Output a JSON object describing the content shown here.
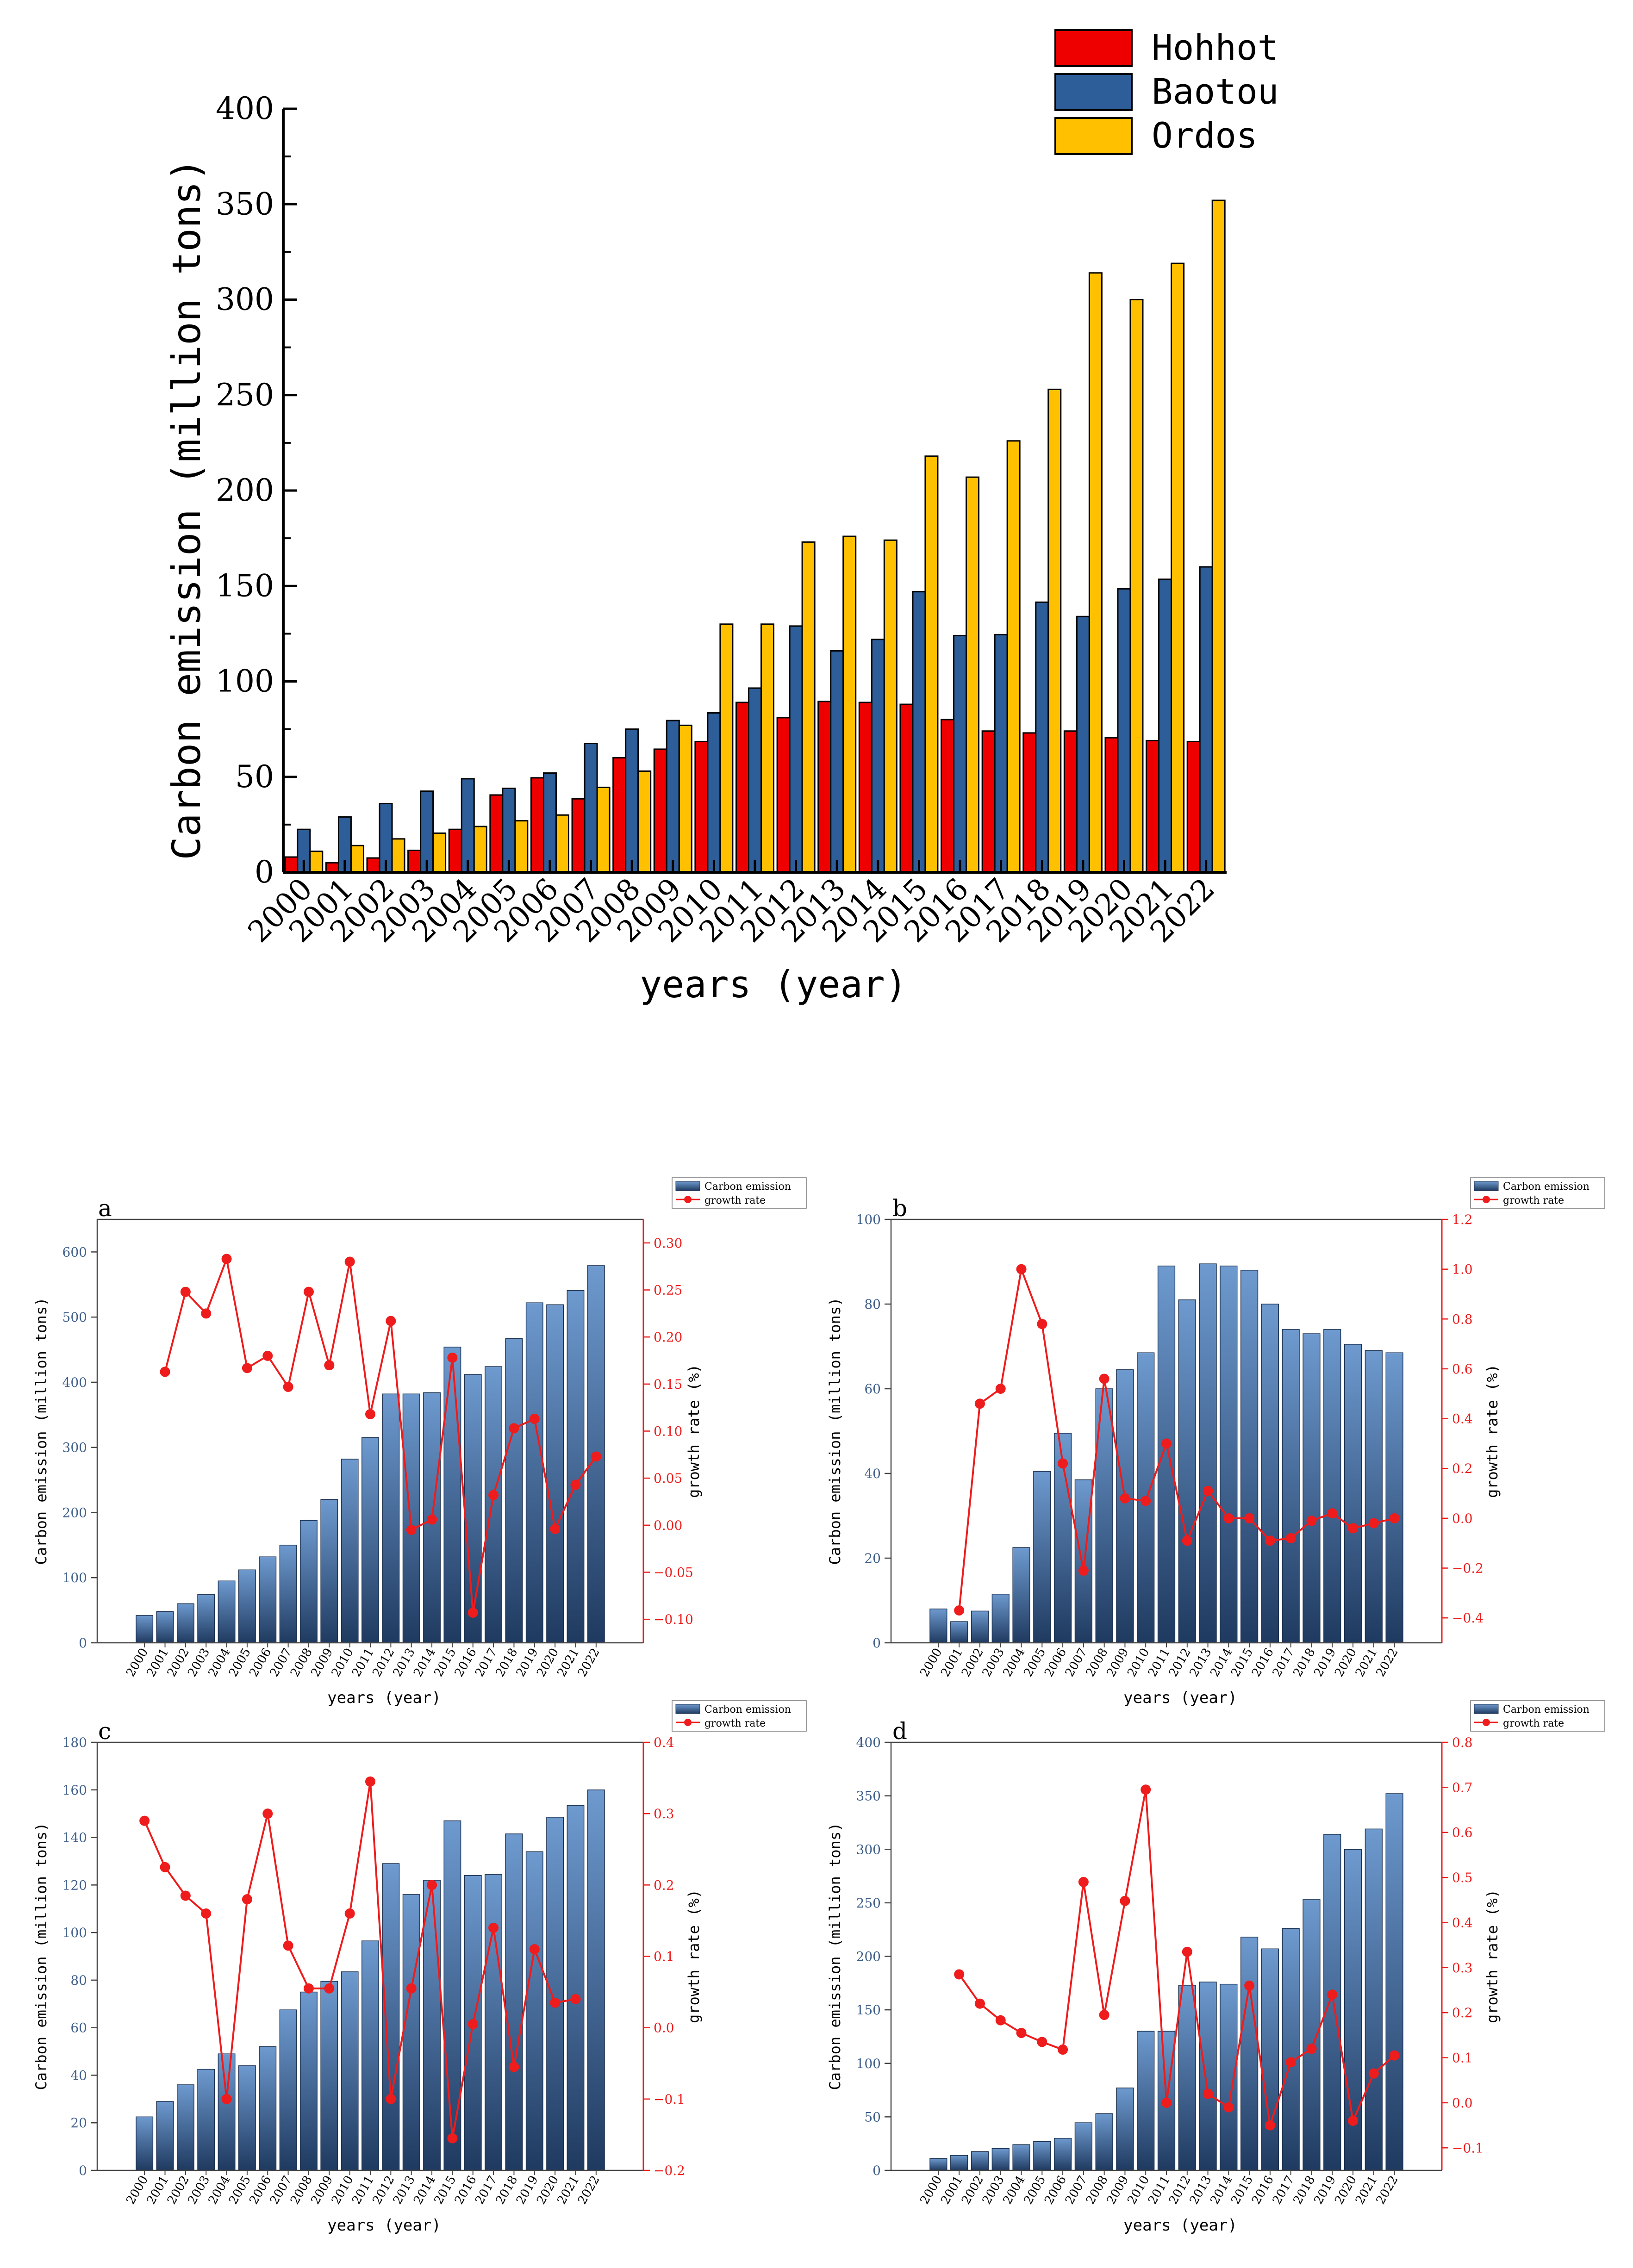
{
  "colors": {
    "hohhot": "#EE0000",
    "baotou": "#2E5E9A",
    "ordos": "#FFC000",
    "bar_dark": "#1F3A60",
    "bar_light": "#6E9ACF",
    "growth": "#EE1C1C",
    "axis": "#000000"
  },
  "chart_data": [
    {
      "id": "main",
      "type": "bar",
      "title": "",
      "xlabel": "years (year)",
      "ylabel": "Carbon emission (million tons)",
      "ylim": [
        0,
        400
      ],
      "yticks": [
        0,
        50,
        100,
        150,
        200,
        250,
        300,
        350,
        400
      ],
      "legend_position": "top-right",
      "categories": [
        "2000",
        "2001",
        "2002",
        "2003",
        "2004",
        "2005",
        "2006",
        "2007",
        "2008",
        "2009",
        "2010",
        "2011",
        "2012",
        "2013",
        "2014",
        "2015",
        "2016",
        "2017",
        "2018",
        "2019",
        "2020",
        "2021",
        "2022"
      ],
      "series": [
        {
          "name": "Hohhot",
          "color_key": "hohhot",
          "values": [
            8,
            5,
            7.5,
            11.5,
            22.5,
            40.5,
            49.5,
            38.5,
            60,
            64.5,
            68.5,
            89,
            81,
            89.5,
            89,
            88,
            80,
            74,
            73,
            74,
            70.5,
            69,
            68.5
          ]
        },
        {
          "name": "Baotou",
          "color_key": "baotou",
          "values": [
            22.5,
            29,
            36,
            42.5,
            49,
            44,
            52,
            67.5,
            75,
            79.5,
            83.5,
            96.5,
            129,
            116,
            122,
            147,
            124,
            124.5,
            141.5,
            134,
            148.5,
            153.5,
            160
          ]
        },
        {
          "name": "Ordos",
          "color_key": "ordos",
          "values": [
            11,
            14,
            17.5,
            20.5,
            24,
            27,
            30,
            44.5,
            53,
            77,
            130,
            130,
            173,
            176,
            174,
            218,
            207,
            226,
            253,
            314,
            300,
            319,
            352
          ]
        }
      ]
    },
    {
      "id": "a",
      "type": "bar+line",
      "panel_label": "a",
      "xlabel": "years (year)",
      "ylabel": "Carbon emission (million tons)",
      "y2label": "growth rate (%)",
      "ylim": [
        0,
        650
      ],
      "yticks": [
        0,
        100,
        200,
        300,
        400,
        500,
        600
      ],
      "y2lim": [
        -0.125,
        0.325
      ],
      "y2ticks": [
        -0.1,
        -0.05,
        0.0,
        0.05,
        0.1,
        0.15,
        0.2,
        0.25,
        0.3
      ],
      "y2tick_labels": [
        "−0.10",
        "−0.05",
        "0.00",
        "0.05",
        "0.10",
        "0.15",
        "0.20",
        "0.25",
        "0.30"
      ],
      "legend": [
        "Carbon emission",
        "growth rate"
      ],
      "categories": [
        "2000",
        "2001",
        "2002",
        "2003",
        "2004",
        "2005",
        "2006",
        "2007",
        "2008",
        "2009",
        "2010",
        "2011",
        "2012",
        "2013",
        "2014",
        "2015",
        "2016",
        "2017",
        "2018",
        "2019",
        "2020",
        "2021",
        "2022"
      ],
      "bars": [
        42,
        48,
        60,
        74,
        95,
        112,
        132,
        150,
        188,
        220,
        282,
        315,
        382,
        382,
        384,
        454,
        412,
        424,
        467,
        522,
        519,
        541,
        579
      ],
      "growth_x": [
        "2001",
        "2002",
        "2003",
        "2004",
        "2005",
        "2006",
        "2007",
        "2008",
        "2009",
        "2010",
        "2011",
        "2012",
        "2013",
        "2014",
        "2015",
        "2016",
        "2017",
        "2018",
        "2019",
        "2020",
        "2021",
        "2022"
      ],
      "growth": [
        0.163,
        0.248,
        0.225,
        0.283,
        0.167,
        0.18,
        0.147,
        0.248,
        0.17,
        0.28,
        0.118,
        0.217,
        -0.005,
        0.006,
        0.178,
        -0.093,
        0.032,
        0.103,
        0.113,
        -0.004,
        0.043,
        0.073
      ]
    },
    {
      "id": "b",
      "type": "bar+line",
      "panel_label": "b",
      "xlabel": "years (year)",
      "ylabel": "Carbon emission (million tons)",
      "y2label": "growth rate (%)",
      "ylim": [
        0,
        100
      ],
      "yticks": [
        0,
        20,
        40,
        60,
        80,
        100
      ],
      "y2lim": [
        -0.5,
        1.2
      ],
      "y2ticks": [
        -0.4,
        -0.2,
        0.0,
        0.2,
        0.4,
        0.6,
        0.8,
        1.0,
        1.2
      ],
      "y2tick_labels": [
        "−0.4",
        "−0.2",
        "0.0",
        "0.2",
        "0.4",
        "0.6",
        "0.8",
        "1.0",
        "1.2"
      ],
      "legend": [
        "Carbon emission",
        "growth rate"
      ],
      "categories": [
        "2000",
        "2001",
        "2002",
        "2003",
        "2004",
        "2005",
        "2006",
        "2007",
        "2008",
        "2009",
        "2010",
        "2011",
        "2012",
        "2013",
        "2014",
        "2015",
        "2016",
        "2017",
        "2018",
        "2019",
        "2020",
        "2021",
        "2022"
      ],
      "bars": [
        8,
        5,
        7.5,
        11.5,
        22.5,
        40.5,
        49.5,
        38.5,
        60,
        64.5,
        68.5,
        89,
        81,
        89.5,
        89,
        88,
        80,
        74,
        73,
        74,
        70.5,
        69,
        68.5
      ],
      "growth_x": [
        "2001",
        "2002",
        "2003",
        "2004",
        "2005",
        "2006",
        "2007",
        "2008",
        "2009",
        "2010",
        "2011",
        "2012",
        "2013",
        "2014",
        "2015",
        "2016",
        "2017",
        "2018",
        "2019",
        "2020",
        "2021",
        "2022"
      ],
      "growth": [
        -0.37,
        0.46,
        0.52,
        1.0,
        0.78,
        0.22,
        -0.21,
        0.56,
        0.08,
        0.07,
        0.3,
        -0.09,
        0.11,
        0.0,
        0.0,
        -0.09,
        -0.08,
        -0.01,
        0.02,
        -0.04,
        -0.02,
        0.0
      ]
    },
    {
      "id": "c",
      "type": "bar+line",
      "panel_label": "c",
      "xlabel": "years (year)",
      "ylabel": "Carbon emission (million tons)",
      "y2label": "growth rate (%)",
      "ylim": [
        0,
        180
      ],
      "yticks": [
        0,
        20,
        40,
        60,
        80,
        100,
        120,
        140,
        160,
        180
      ],
      "y2lim": [
        -0.2,
        0.4
      ],
      "y2ticks": [
        -0.2,
        -0.1,
        0.0,
        0.1,
        0.2,
        0.3,
        0.4
      ],
      "y2tick_labels": [
        "−0.2",
        "−0.1",
        "0.0",
        "0.1",
        "0.2",
        "0.3",
        "0.4"
      ],
      "legend": [
        "Carbon emission",
        "growth rate"
      ],
      "categories": [
        "2000",
        "2001",
        "2002",
        "2003",
        "2004",
        "2005",
        "2006",
        "2007",
        "2008",
        "2009",
        "2010",
        "2011",
        "2012",
        "2013",
        "2014",
        "2015",
        "2016",
        "2017",
        "2018",
        "2019",
        "2020",
        "2021",
        "2022"
      ],
      "bars": [
        22.5,
        29,
        36,
        42.5,
        49,
        44,
        52,
        67.5,
        75,
        79.5,
        83.5,
        96.5,
        129,
        116,
        122,
        147,
        124,
        124.5,
        141.5,
        134,
        148.5,
        153.5,
        160
      ],
      "growth_x": [
        "2000",
        "2001",
        "2002",
        "2003",
        "2004",
        "2005",
        "2006",
        "2007",
        "2008",
        "2009",
        "2010",
        "2011",
        "2012",
        "2013",
        "2014",
        "2015",
        "2016",
        "2017",
        "2018",
        "2019",
        "2020",
        "2021"
      ],
      "growth": [
        0.29,
        0.225,
        0.185,
        0.16,
        -0.1,
        0.18,
        0.3,
        0.115,
        0.055,
        0.055,
        0.16,
        0.345,
        -0.1,
        0.055,
        0.2,
        -0.155,
        0.005,
        0.14,
        -0.055,
        0.11,
        0.035,
        0.04
      ]
    },
    {
      "id": "d",
      "type": "bar+line",
      "panel_label": "d",
      "xlabel": "years (year)",
      "ylabel": "Carbon emission (million tons)",
      "y2label": "growth rate (%)",
      "ylim": [
        0,
        400
      ],
      "yticks": [
        0,
        50,
        100,
        150,
        200,
        250,
        300,
        350,
        400
      ],
      "y2lim": [
        -0.15,
        0.8
      ],
      "y2ticks": [
        -0.1,
        0.0,
        0.1,
        0.2,
        0.3,
        0.4,
        0.5,
        0.6,
        0.7,
        0.8
      ],
      "y2tick_labels": [
        "−0.1",
        "0.0",
        "0.1",
        "0.2",
        "0.3",
        "0.4",
        "0.5",
        "0.6",
        "0.7",
        "0.8"
      ],
      "legend": [
        "Carbon emission",
        "growth rate"
      ],
      "categories": [
        "2000",
        "2001",
        "2002",
        "2003",
        "2004",
        "2005",
        "2006",
        "2007",
        "2008",
        "2009",
        "2010",
        "2011",
        "2012",
        "2013",
        "2014",
        "2015",
        "2016",
        "2017",
        "2018",
        "2019",
        "2020",
        "2021",
        "2022"
      ],
      "bars": [
        11,
        14,
        17.5,
        20.5,
        24,
        27,
        30,
        44.5,
        53,
        77,
        130,
        130,
        173,
        176,
        174,
        218,
        207,
        226,
        253,
        314,
        300,
        319,
        352
      ],
      "growth_x": [
        "2001",
        "2002",
        "2003",
        "2004",
        "2005",
        "2006",
        "2007",
        "2008",
        "2009",
        "2010",
        "2011",
        "2012",
        "2013",
        "2014",
        "2015",
        "2016",
        "2017",
        "2018",
        "2019",
        "2020",
        "2021",
        "2022"
      ],
      "growth": [
        0.285,
        0.22,
        0.183,
        0.155,
        0.135,
        0.118,
        0.49,
        0.195,
        0.448,
        0.695,
        0.0,
        0.335,
        0.02,
        -0.01,
        0.26,
        -0.05,
        0.09,
        0.12,
        0.24,
        -0.04,
        0.065,
        0.105
      ]
    }
  ]
}
